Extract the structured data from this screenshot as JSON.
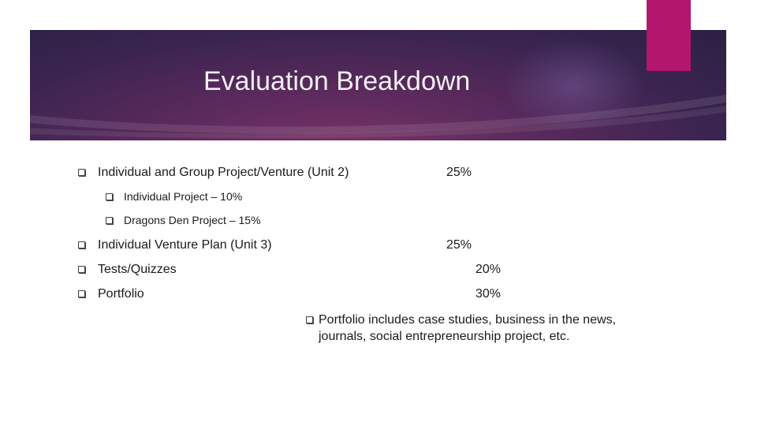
{
  "slide": {
    "title": "Evaluation Breakdown",
    "items": [
      {
        "label": "Individual and Group Project/Venture (Unit 2)",
        "percent": "25%"
      },
      {
        "label": "Individual Project – 10%"
      },
      {
        "label": "Dragons Den Project – 15%"
      },
      {
        "label": "Individual Venture Plan (Unit 3)",
        "percent": "25%"
      },
      {
        "label": "Tests/Quizzes",
        "percent": "20%"
      },
      {
        "label": "Portfolio",
        "percent": "30%"
      }
    ],
    "note": "Portfolio includes case studies, business in the news, journals, social entrepreneurship project, etc."
  },
  "colors": {
    "accent": "#b2166d",
    "banner": "#3a2450"
  },
  "icons": {
    "bullet": "checkbox-bullet-icon"
  }
}
